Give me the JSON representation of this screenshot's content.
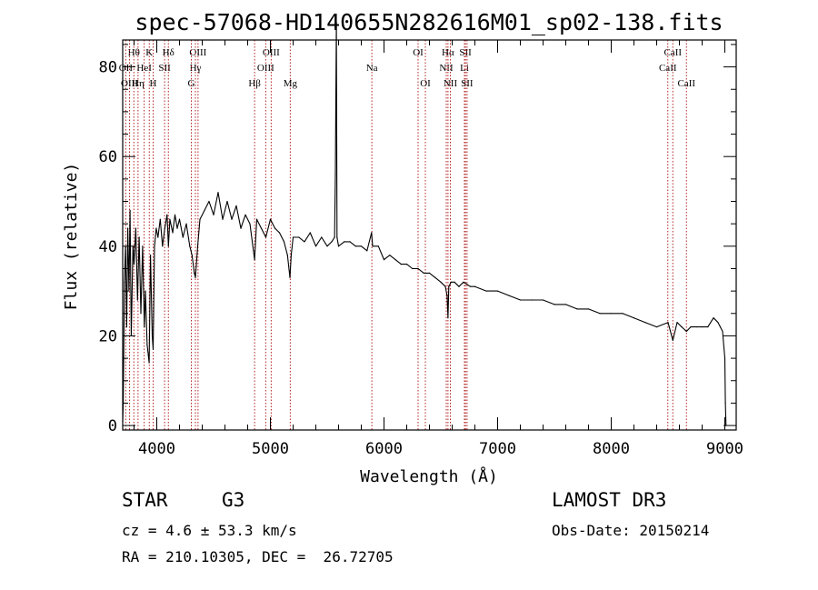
{
  "chart_data": {
    "type": "line",
    "title": "spec-57068-HD140655N282616M01_sp02-138.fits",
    "xlabel": "Wavelength (Å)",
    "ylabel": "Flux (relative)",
    "xlim": [
      3700,
      9100
    ],
    "ylim": [
      -1,
      86
    ],
    "xticks": [
      4000,
      5000,
      6000,
      7000,
      8000,
      9000
    ],
    "yticks": [
      0,
      20,
      40,
      60,
      80
    ],
    "line_color": "#000000",
    "marker_color": "#b22222",
    "series": [
      {
        "name": "flux",
        "x": [
          3700,
          3705,
          3715,
          3725,
          3735,
          3745,
          3755,
          3765,
          3775,
          3790,
          3800,
          3815,
          3830,
          3845,
          3860,
          3875,
          3890,
          3900,
          3915,
          3933,
          3945,
          3960,
          3968,
          3980,
          3995,
          4010,
          4030,
          4050,
          4070,
          4090,
          4102,
          4115,
          4140,
          4160,
          4180,
          4200,
          4230,
          4260,
          4290,
          4310,
          4330,
          4340,
          4360,
          4380,
          4420,
          4460,
          4500,
          4540,
          4580,
          4620,
          4660,
          4700,
          4740,
          4780,
          4820,
          4861,
          4880,
          4920,
          4960,
          5000,
          5040,
          5080,
          5120,
          5150,
          5172,
          5183,
          5200,
          5250,
          5300,
          5350,
          5400,
          5450,
          5500,
          5540,
          5565,
          5572,
          5577,
          5581,
          5586,
          5600,
          5650,
          5700,
          5750,
          5800,
          5850,
          5890,
          5900,
          5950,
          6000,
          6050,
          6100,
          6150,
          6200,
          6250,
          6300,
          6350,
          6400,
          6450,
          6500,
          6540,
          6555,
          6563,
          6570,
          6590,
          6620,
          6660,
          6700,
          6760,
          6800,
          6900,
          7000,
          7100,
          7200,
          7300,
          7400,
          7500,
          7600,
          7700,
          7800,
          7900,
          8000,
          8100,
          8200,
          8300,
          8400,
          8500,
          8542,
          8580,
          8620,
          8662,
          8700,
          8750,
          8800,
          8850,
          8900,
          8940,
          8960,
          8980,
          9000,
          9005,
          9010
        ],
        "y": [
          1,
          5,
          32,
          40,
          22,
          44,
          30,
          48,
          20,
          40,
          36,
          44,
          28,
          42,
          25,
          40,
          22,
          30,
          18,
          14,
          38,
          20,
          17,
          40,
          44,
          42,
          46,
          40,
          44,
          47,
          40,
          46,
          43,
          47,
          44,
          46,
          42,
          45,
          40,
          38,
          34,
          33,
          40,
          46,
          48,
          50,
          47,
          52,
          46,
          50,
          46,
          49,
          44,
          47,
          45,
          37,
          46,
          44,
          42,
          46,
          44,
          43,
          41,
          38,
          33,
          38,
          42,
          42,
          41,
          43,
          40,
          42,
          40,
          41,
          42,
          56,
          75,
          90,
          42,
          40,
          41,
          41,
          40,
          40,
          39,
          43,
          40,
          40,
          37,
          38,
          37,
          36,
          36,
          35,
          35,
          34,
          34,
          33,
          32,
          31,
          29,
          24,
          31,
          32,
          32,
          31,
          32,
          31,
          31,
          30,
          30,
          29,
          28,
          28,
          28,
          27,
          27,
          26,
          26,
          25,
          25,
          25,
          24,
          23,
          22,
          23,
          19,
          23,
          22,
          21,
          22,
          22,
          22,
          22,
          24,
          23,
          22,
          21,
          15,
          5,
          0
        ]
      }
    ],
    "lines": [
      {
        "name": "Hθ",
        "wave": 3798,
        "row": 1
      },
      {
        "name": "OII",
        "wave": 3727,
        "row": 2
      },
      {
        "name": "OIII",
        "wave": 3760,
        "row": 3
      },
      {
        "name": "Hη",
        "wave": 3835,
        "row": 3
      },
      {
        "name": "HeI",
        "wave": 3889,
        "row": 2
      },
      {
        "name": "K",
        "wave": 3934,
        "row": 1
      },
      {
        "name": "H",
        "wave": 3968,
        "row": 3
      },
      {
        "name": "SII",
        "wave": 4069,
        "row": 2
      },
      {
        "name": "Hδ",
        "wave": 4102,
        "row": 1
      },
      {
        "name": "OIII",
        "wave": 4363,
        "row": 1
      },
      {
        "name": "Hγ",
        "wave": 4340,
        "row": 2
      },
      {
        "name": "G",
        "wave": 4304,
        "row": 3
      },
      {
        "name": "Hβ",
        "wave": 4861,
        "row": 3
      },
      {
        "name": "OIII",
        "wave": 4959,
        "row": 2
      },
      {
        "name": "OIII",
        "wave": 5007,
        "row": 1
      },
      {
        "name": "Mg",
        "wave": 5175,
        "row": 3
      },
      {
        "name": "Na",
        "wave": 5893,
        "row": 2
      },
      {
        "name": "OI",
        "wave": 6300,
        "row": 1
      },
      {
        "name": "OI",
        "wave": 6364,
        "row": 3
      },
      {
        "name": "NII",
        "wave": 6548,
        "row": 2
      },
      {
        "name": "Hα",
        "wave": 6563,
        "row": 1
      },
      {
        "name": "NII",
        "wave": 6584,
        "row": 3
      },
      {
        "name": "Li",
        "wave": 6708,
        "row": 2
      },
      {
        "name": "SII",
        "wave": 6717,
        "row": 1
      },
      {
        "name": "SII",
        "wave": 6731,
        "row": 3
      },
      {
        "name": "CaII",
        "wave": 8498,
        "row": 2
      },
      {
        "name": "CaII",
        "wave": 8542,
        "row": 1
      },
      {
        "name": "CaII",
        "wave": 8662,
        "row": 3
      }
    ]
  },
  "info": {
    "class_label": "STAR",
    "subclass": "G3",
    "survey": "LAMOST DR3",
    "redshift": "cz = 4.6 ± 53.3 km/s",
    "obs_date": "Obs-Date: 20150214",
    "coords": "RA = 210.10305, DEC =  26.72705"
  }
}
